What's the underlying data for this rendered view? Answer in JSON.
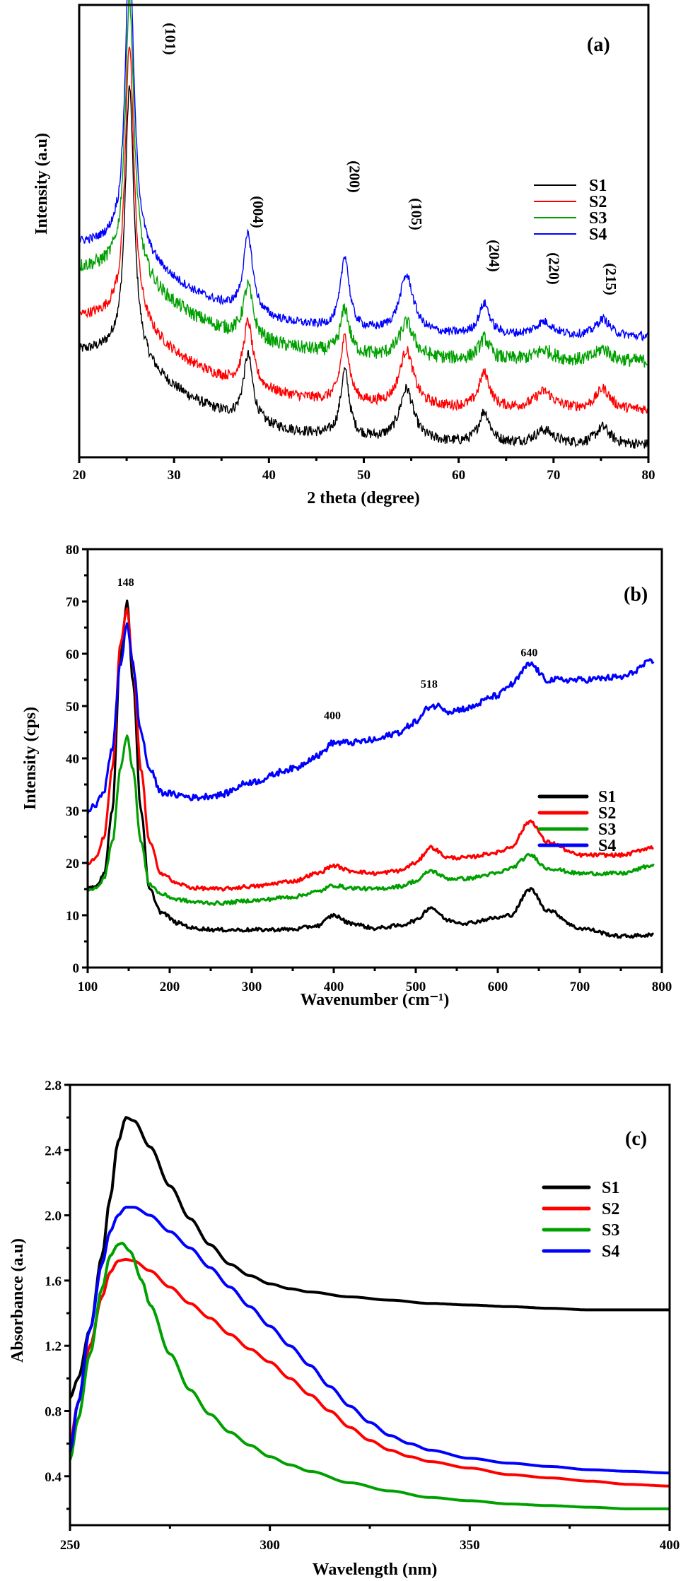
{
  "chart_data": [
    {
      "id": "a",
      "type": "line",
      "panel_label": "(a)",
      "title": "",
      "xlabel": "2 theta (degree)",
      "ylabel": "Intensity (a.u)",
      "xlim": [
        20,
        80
      ],
      "xticks": [
        20,
        30,
        40,
        50,
        60,
        70,
        80
      ],
      "yticks_shown": false,
      "grid": false,
      "legend": {
        "position": "right-middle",
        "entries": [
          "S1",
          "S2",
          "S3",
          "S4"
        ]
      },
      "annotations": [
        {
          "text": "(101)",
          "x": 25.3
        },
        {
          "text": "(004)",
          "x": 37.8
        },
        {
          "text": "(200)",
          "x": 48.0
        },
        {
          "text": "(105)",
          "x": 54.5
        },
        {
          "text": "(204)",
          "x": 62.7
        },
        {
          "text": "(220)",
          "x": 69.0
        },
        {
          "text": "(215)",
          "x": 75.0
        }
      ],
      "peaks": [
        {
          "x": 25.3,
          "w": 0.55
        },
        {
          "x": 37.8,
          "w": 0.6
        },
        {
          "x": 48.0,
          "w": 0.55
        },
        {
          "x": 54.5,
          "w": 0.9
        },
        {
          "x": 62.7,
          "w": 0.7
        },
        {
          "x": 69.0,
          "w": 1.2
        },
        {
          "x": 75.2,
          "w": 0.9
        }
      ],
      "series": [
        {
          "name": "S1",
          "color": "#000000",
          "offset": 0.0,
          "base_start": 0.62,
          "base_end": 0.02,
          "peak_heights": [
            1.55,
            0.38,
            0.38,
            0.3,
            0.18,
            0.08,
            0.1
          ],
          "noise": 0.06
        },
        {
          "name": "S2",
          "color": "#ff0000",
          "offset": 0.2,
          "base_start": 0.62,
          "base_end": 0.02,
          "peak_heights": [
            1.6,
            0.37,
            0.37,
            0.32,
            0.2,
            0.1,
            0.12
          ],
          "noise": 0.06
        },
        {
          "name": "S3",
          "color": "#00a000",
          "offset": 0.48,
          "base_start": 0.62,
          "base_end": 0.02,
          "peak_heights": [
            1.58,
            0.3,
            0.26,
            0.2,
            0.12,
            0.06,
            0.07
          ],
          "noise": 0.08
        },
        {
          "name": "S4",
          "color": "#0000ff",
          "offset": 0.62,
          "base_start": 0.62,
          "base_end": 0.02,
          "peak_heights": [
            1.72,
            0.45,
            0.42,
            0.33,
            0.18,
            0.08,
            0.1
          ],
          "noise": 0.05
        }
      ]
    },
    {
      "id": "b",
      "type": "line",
      "panel_label": "(b)",
      "title": "",
      "xlabel": "Wavenumber (cm⁻¹)",
      "ylabel": "Intensity (cps)",
      "xlim": [
        100,
        800
      ],
      "ylim": [
        0,
        80
      ],
      "xticks": [
        100,
        200,
        300,
        400,
        500,
        600,
        700,
        800
      ],
      "yticks": [
        0,
        10,
        20,
        30,
        40,
        50,
        60,
        70,
        80
      ],
      "grid": false,
      "legend": {
        "position": "right-middle",
        "entries": [
          "S1",
          "S2",
          "S3",
          "S4"
        ]
      },
      "annotations": [
        {
          "text": "148",
          "x": 148,
          "y": 73
        },
        {
          "text": "400",
          "x": 400,
          "y": 47.5
        },
        {
          "text": "518",
          "x": 518,
          "y": 53.5
        },
        {
          "text": "640",
          "x": 640,
          "y": 59.5
        }
      ],
      "series": [
        {
          "name": "S1",
          "color": "#000000",
          "x": [
            100,
            110,
            120,
            130,
            140,
            148,
            155,
            165,
            175,
            190,
            210,
            230,
            260,
            300,
            350,
            380,
            400,
            420,
            450,
            480,
            500,
            518,
            540,
            560,
            600,
            615,
            640,
            660,
            700,
            750,
            790
          ],
          "y": [
            15,
            15.5,
            18,
            30,
            60,
            70,
            55,
            30,
            15,
            10.5,
            8.5,
            7.5,
            7.2,
            7.2,
            7.3,
            8,
            10,
            8.5,
            7.5,
            8,
            9,
            11.5,
            9,
            8.5,
            9.5,
            10,
            15,
            11,
            7.5,
            6,
            6.2
          ]
        },
        {
          "name": "S2",
          "color": "#ff0000",
          "x": [
            100,
            110,
            120,
            130,
            140,
            148,
            155,
            165,
            175,
            190,
            210,
            230,
            260,
            300,
            350,
            380,
            400,
            420,
            450,
            480,
            500,
            518,
            540,
            560,
            600,
            615,
            640,
            660,
            700,
            750,
            790
          ],
          "y": [
            20,
            21,
            25,
            38,
            62,
            68.5,
            58,
            38,
            24,
            18,
            16,
            15.2,
            15,
            15.5,
            16.5,
            18,
            19.5,
            18.5,
            18,
            18.5,
            20,
            23,
            21,
            21,
            22,
            23,
            28,
            24,
            21.5,
            21.5,
            23
          ]
        },
        {
          "name": "S3",
          "color": "#00a000",
          "x": [
            100,
            110,
            120,
            130,
            140,
            148,
            155,
            165,
            175,
            190,
            210,
            230,
            260,
            300,
            350,
            380,
            400,
            420,
            450,
            480,
            500,
            518,
            540,
            560,
            600,
            615,
            640,
            660,
            700,
            750,
            790
          ],
          "y": [
            15,
            15,
            17,
            24,
            38,
            44.5,
            38,
            24,
            16,
            14,
            13,
            12.5,
            12.3,
            12.8,
            13.5,
            14.5,
            15.7,
            15.2,
            15,
            15.5,
            16.5,
            18.5,
            17,
            17,
            18,
            19,
            21.5,
            19,
            18,
            18,
            19.5
          ]
        },
        {
          "name": "S4",
          "color": "#0000ff",
          "x": [
            100,
            110,
            120,
            130,
            140,
            148,
            155,
            165,
            175,
            190,
            210,
            230,
            260,
            300,
            350,
            380,
            400,
            420,
            450,
            480,
            500,
            518,
            530,
            540,
            560,
            600,
            615,
            640,
            660,
            700,
            750,
            790
          ],
          "y": [
            30,
            31,
            34,
            42,
            58,
            66,
            58,
            45,
            38,
            33.5,
            33,
            32.5,
            33,
            35.5,
            38,
            40.5,
            43,
            43,
            43.5,
            45,
            47,
            50,
            50,
            49,
            49.5,
            52,
            54,
            58,
            55,
            55,
            55.5,
            58.5
          ]
        }
      ]
    },
    {
      "id": "c",
      "type": "line",
      "panel_label": "(c)",
      "title": "",
      "xlabel": "Wavelength (nm)",
      "ylabel": "Absorbance (a.u)",
      "xlim": [
        250,
        400
      ],
      "ylim": [
        0.1,
        2.8
      ],
      "xticks": [
        250,
        300,
        350,
        400
      ],
      "yticks": [
        0.4,
        0.8,
        1.2,
        1.6,
        2.0,
        2.4,
        2.8
      ],
      "grid": false,
      "legend": {
        "position": "right-top",
        "entries": [
          "S1",
          "S2",
          "S3",
          "S4"
        ]
      },
      "series": [
        {
          "name": "S1",
          "color": "#000000",
          "x": [
            250,
            252,
            255,
            258,
            260,
            262,
            264,
            266,
            270,
            275,
            280,
            285,
            290,
            295,
            300,
            305,
            310,
            320,
            330,
            340,
            350,
            360,
            370,
            380,
            390,
            400
          ],
          "y": [
            0.88,
            1.0,
            1.3,
            1.75,
            2.1,
            2.45,
            2.6,
            2.58,
            2.42,
            2.18,
            1.98,
            1.82,
            1.7,
            1.63,
            1.58,
            1.55,
            1.53,
            1.5,
            1.48,
            1.46,
            1.45,
            1.44,
            1.43,
            1.42,
            1.42,
            1.42
          ]
        },
        {
          "name": "S2",
          "color": "#ff0000",
          "x": [
            250,
            252,
            255,
            258,
            260,
            262,
            264,
            266,
            270,
            275,
            280,
            285,
            290,
            295,
            300,
            305,
            310,
            315,
            320,
            325,
            330,
            335,
            340,
            350,
            360,
            370,
            380,
            390,
            400
          ],
          "y": [
            0.6,
            0.85,
            1.2,
            1.5,
            1.65,
            1.72,
            1.73,
            1.72,
            1.66,
            1.56,
            1.46,
            1.37,
            1.27,
            1.18,
            1.1,
            1.0,
            0.9,
            0.8,
            0.7,
            0.62,
            0.56,
            0.52,
            0.49,
            0.45,
            0.41,
            0.39,
            0.37,
            0.35,
            0.34
          ]
        },
        {
          "name": "S3",
          "color": "#00a000",
          "x": [
            250,
            252,
            255,
            258,
            260,
            262,
            263,
            265,
            268,
            270,
            275,
            280,
            285,
            290,
            295,
            300,
            305,
            310,
            320,
            330,
            340,
            350,
            360,
            370,
            380,
            390,
            400
          ],
          "y": [
            0.5,
            0.75,
            1.15,
            1.55,
            1.75,
            1.82,
            1.83,
            1.78,
            1.6,
            1.45,
            1.15,
            0.93,
            0.78,
            0.67,
            0.59,
            0.52,
            0.47,
            0.43,
            0.36,
            0.31,
            0.27,
            0.25,
            0.23,
            0.22,
            0.21,
            0.2,
            0.2
          ]
        },
        {
          "name": "S4",
          "color": "#0000ff",
          "x": [
            250,
            252,
            255,
            258,
            260,
            262,
            264,
            266,
            270,
            275,
            280,
            285,
            290,
            295,
            300,
            305,
            310,
            315,
            320,
            325,
            330,
            335,
            340,
            350,
            360,
            370,
            380,
            390,
            400
          ],
          "y": [
            0.55,
            0.85,
            1.3,
            1.7,
            1.9,
            2.0,
            2.05,
            2.05,
            2.0,
            1.9,
            1.8,
            1.68,
            1.56,
            1.44,
            1.32,
            1.2,
            1.08,
            0.95,
            0.83,
            0.73,
            0.65,
            0.6,
            0.56,
            0.51,
            0.48,
            0.46,
            0.44,
            0.43,
            0.42
          ]
        }
      ]
    }
  ]
}
